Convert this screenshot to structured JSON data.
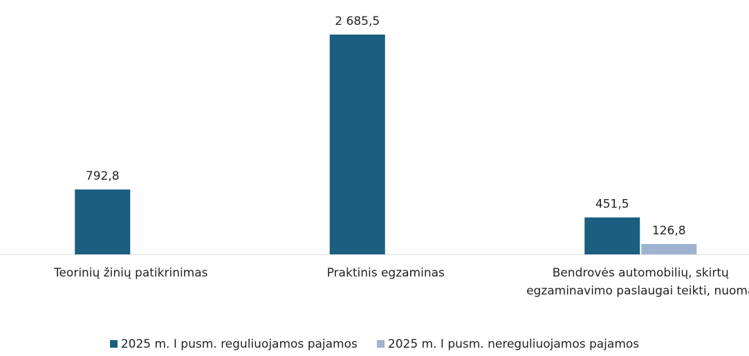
{
  "chart_data": {
    "type": "bar",
    "categories": [
      "Teorinių žinių patikrinimas",
      "Praktinis egzaminas",
      "Bendrovės automobilių, skirtų egzaminavimo paslaugai teikti, nuoma"
    ],
    "series": [
      {
        "name": "2025 m. I pusm. reguliuojamos pajamos",
        "color": "#1b5e80",
        "values": [
          792.8,
          2685.5,
          451.5
        ],
        "value_labels": [
          "792,8",
          "2 685,5",
          "451,5"
        ]
      },
      {
        "name": "2025 m. I pusm. nereguliuojamos pajamos",
        "color": "#9fb3d1",
        "values": [
          null,
          null,
          126.8
        ],
        "value_labels": [
          null,
          null,
          "126,8"
        ]
      }
    ],
    "legend": "bottom"
  }
}
